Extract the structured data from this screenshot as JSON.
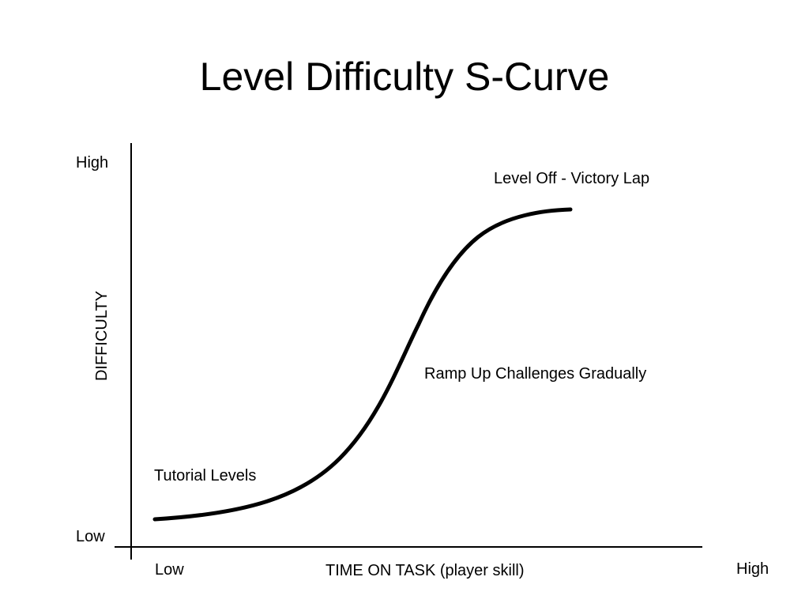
{
  "slide": {
    "title": "Level Difficulty S-Curve"
  },
  "diagram": {
    "y_axis": {
      "label": "DIFFICULTY",
      "high_label": "High",
      "low_label": "Low"
    },
    "x_axis": {
      "label": "TIME ON TASK (player skill)",
      "low_label": "Low",
      "high_label": "High"
    },
    "annotations": {
      "tutorial": "Tutorial Levels",
      "ramp": "Ramp Up Challenges Gradually",
      "level_off": "Level Off - Victory Lap"
    },
    "curve": {
      "shape": "s-curve",
      "color": "#000000"
    }
  }
}
